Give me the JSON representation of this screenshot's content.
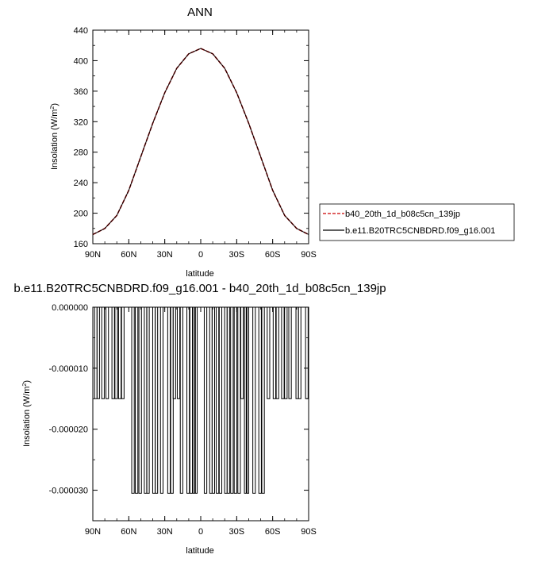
{
  "chart_data": [
    {
      "type": "line",
      "title": "ANN",
      "xlabel": "latitude",
      "ylabel": "Insolation (W/m",
      "ylabel_sup": "2",
      "ylabel_close": ")",
      "xlim": [
        90,
        -90
      ],
      "ylim": [
        160,
        440
      ],
      "xticks": [
        {
          "value": 90,
          "label": "90N"
        },
        {
          "value": 60,
          "label": "60N"
        },
        {
          "value": 30,
          "label": "30N"
        },
        {
          "value": 0,
          "label": "0"
        },
        {
          "value": -30,
          "label": "30S"
        },
        {
          "value": -60,
          "label": "60S"
        },
        {
          "value": -90,
          "label": "90S"
        }
      ],
      "yticks": [
        "160",
        "200",
        "240",
        "280",
        "320",
        "360",
        "400",
        "440"
      ],
      "legend_position": "right",
      "series": [
        {
          "name": "b40_20th_1d_b08c5cn_139jp",
          "color": "#cc0000",
          "dash": "dashed",
          "x": [
            90,
            80,
            70,
            60,
            50,
            40,
            30,
            20,
            10,
            0,
            -10,
            -20,
            -30,
            -40,
            -50,
            -60,
            -70,
            -80,
            -90
          ],
          "values": [
            172,
            180,
            197,
            230,
            274,
            318,
            358,
            390,
            409,
            416,
            409,
            390,
            358,
            318,
            274,
            230,
            197,
            180,
            172
          ]
        },
        {
          "name": "b.e11.B20TRC5CNBDRD.f09_g16.001",
          "color": "#000000",
          "dash": "solid",
          "x": [
            90,
            80,
            70,
            60,
            50,
            40,
            30,
            20,
            10,
            0,
            -10,
            -20,
            -30,
            -40,
            -50,
            -60,
            -70,
            -80,
            -90
          ],
          "values": [
            172,
            180,
            197,
            230,
            274,
            318,
            358,
            390,
            409,
            416,
            409,
            390,
            358,
            318,
            274,
            230,
            197,
            180,
            172
          ]
        }
      ]
    },
    {
      "type": "line",
      "title": "b.e11.B20TRC5CNBDRD.f09_g16.001 - b40_20th_1d_b08c5cn_139jp",
      "xlabel": "latitude",
      "ylabel": "Insolation (W/m",
      "ylabel_sup": "2",
      "ylabel_close": ")",
      "xlim": [
        90,
        -90
      ],
      "ylim": [
        -3.5e-05,
        0.0
      ],
      "xticks": [
        {
          "value": 90,
          "label": "90N"
        },
        {
          "value": 60,
          "label": "60N"
        },
        {
          "value": 30,
          "label": "30N"
        },
        {
          "value": 0,
          "label": "0"
        },
        {
          "value": -30,
          "label": "30S"
        },
        {
          "value": -60,
          "label": "60S"
        },
        {
          "value": -90,
          "label": "90S"
        }
      ],
      "yticks": [
        {
          "value": 0.0,
          "label": "0.000000"
        },
        {
          "value": -1e-05,
          "label": "-0.000010"
        },
        {
          "value": -2e-05,
          "label": "-0.000020"
        },
        {
          "value": -3e-05,
          "label": "-0.000030"
        }
      ],
      "series": [
        {
          "name": "",
          "color": "#000000",
          "x": [
            87.5,
            85.5,
            81.5,
            78,
            73,
            70.5,
            67.5,
            65,
            56.5,
            53.5,
            50.5,
            46,
            44,
            39,
            37,
            32.5,
            26.5,
            24,
            22,
            18.5,
            16,
            10.5,
            8,
            5.5,
            4,
            -4,
            -8.5,
            -10.5,
            -14,
            -16.5,
            -21,
            -23,
            -26,
            -29,
            -32,
            -34.5,
            -37.5,
            -39,
            -44.5,
            -49.5,
            -52,
            -56.5,
            -61.5,
            -64,
            -68.5,
            -71,
            -74.5,
            -80.5,
            -82.5,
            -88.5
          ],
          "values": [
            -1.5e-05,
            -1.5e-05,
            -1.5e-05,
            -1.5e-05,
            -1.5e-05,
            -1.5e-05,
            -1.5e-05,
            -1.5e-05,
            -3.05e-05,
            -3.05e-05,
            -3.05e-05,
            -3.05e-05,
            -3.05e-05,
            -3.05e-05,
            -3.05e-05,
            -3.05e-05,
            -3.05e-05,
            -3.05e-05,
            -1.5e-05,
            -1.5e-05,
            -3.05e-05,
            -3.05e-05,
            -3.05e-05,
            -3.05e-05,
            -3.05e-05,
            -3.05e-05,
            -3.05e-05,
            -3.05e-05,
            -3.05e-05,
            -3.05e-05,
            -3.05e-05,
            -3.05e-05,
            -3.05e-05,
            -3.05e-05,
            -3.05e-05,
            -1.5e-05,
            -3.05e-05,
            -3.05e-05,
            -3.05e-05,
            -3.05e-05,
            -3.05e-05,
            -1.5e-05,
            -1.5e-05,
            -1.5e-05,
            -1.5e-05,
            -1.5e-05,
            -1.5e-05,
            -1.5e-05,
            -1.5e-05,
            -1.5e-05
          ]
        }
      ]
    }
  ]
}
